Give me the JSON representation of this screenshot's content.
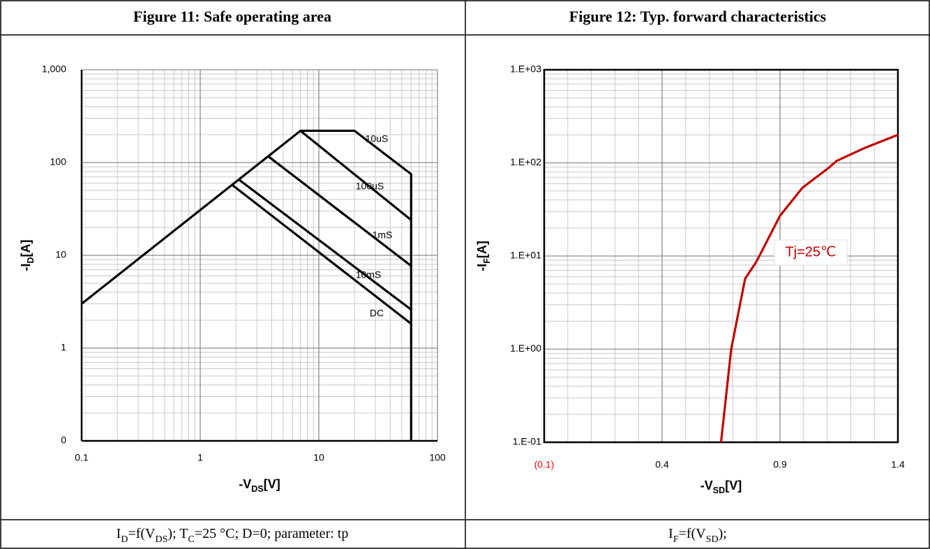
{
  "chart_data": [
    {
      "type": "line",
      "title": "Figure 11:  Safe operating area",
      "caption": [
        {
          "text": "I",
          "sub": "D"
        },
        {
          "text": "=f(V",
          "sub": "DS"
        },
        {
          "text": "); T",
          "sub": "C"
        },
        {
          "text": "=25 °C; D=0; parameter: tp"
        }
      ],
      "x_label": [
        {
          "text": "-V",
          "sub": "DS"
        },
        {
          "text": "[V]"
        }
      ],
      "y_label": [
        {
          "text": "-I",
          "sub": "D"
        },
        {
          "text": "[A]"
        }
      ],
      "xscale": "log",
      "yscale": "log",
      "grid": true,
      "xlim": [
        0.1,
        100
      ],
      "xticks": [
        0.1,
        1,
        10,
        100
      ],
      "ylim": [
        0.1,
        1000
      ],
      "yticks": [
        {
          "value": 0.1,
          "label": "0"
        },
        1,
        10,
        100,
        {
          "value": 1000,
          "label": "1,000"
        }
      ],
      "series": [
        {
          "name": "10uS",
          "color": "#000000",
          "x": [
            0.1,
            7,
            20,
            60,
            60
          ],
          "values": [
            3,
            220,
            220,
            75,
            0.1
          ]
        },
        {
          "name": "100uS",
          "color": "#000000",
          "x": [
            7,
            60
          ],
          "values": [
            220,
            24
          ]
        },
        {
          "name": "1mS",
          "color": "#000000",
          "x": [
            3.8,
            60
          ],
          "values": [
            115,
            7.7
          ]
        },
        {
          "name": "10mS",
          "color": "#000000",
          "x": [
            2.1,
            60
          ],
          "values": [
            66,
            2.6
          ]
        },
        {
          "name": "DC",
          "color": "#000000",
          "x": [
            1.84,
            60
          ],
          "values": [
            58,
            1.83
          ]
        }
      ]
    },
    {
      "type": "line",
      "title": "Figure 12:  Typ. forward characteristics",
      "caption": [
        {
          "text": "I",
          "sub": "F"
        },
        {
          "text": "=f(V",
          "sub": "SD"
        },
        {
          "text": ");"
        }
      ],
      "x_label": [
        {
          "text": "-V",
          "sub": "SD"
        },
        {
          "text": "[V]"
        }
      ],
      "y_label": [
        {
          "text": "-I",
          "sub": "F"
        },
        {
          "text": "[A]"
        }
      ],
      "xscale": "linear",
      "yscale": "log",
      "grid": true,
      "negative_tick_color": "#ff0000",
      "xlim": [
        -0.1,
        1.4
      ],
      "xticks": [
        {
          "value": -0.1,
          "label": "(0.1)"
        },
        0.4,
        0.9,
        1.4
      ],
      "ylim": [
        0.1,
        1000
      ],
      "yticks": [
        {
          "value": 0.1,
          "label": "1.E-01"
        },
        {
          "value": 1,
          "label": "1.E+00"
        },
        {
          "value": 10,
          "label": "1.E+01"
        },
        {
          "value": 100,
          "label": "1.E+02"
        },
        {
          "value": 1000,
          "label": "1.E+03"
        }
      ],
      "series": [
        {
          "name": "Tj=25℃",
          "color": "#c00000",
          "x": [
            0.65,
            0.693,
            0.752,
            0.8,
            0.9,
            0.995,
            1.11,
            1.14,
            1.26,
            1.4
          ],
          "values": [
            0.1,
            1,
            5.7,
            8.7,
            27,
            54,
            90,
            105,
            145,
            200
          ]
        }
      ]
    }
  ]
}
